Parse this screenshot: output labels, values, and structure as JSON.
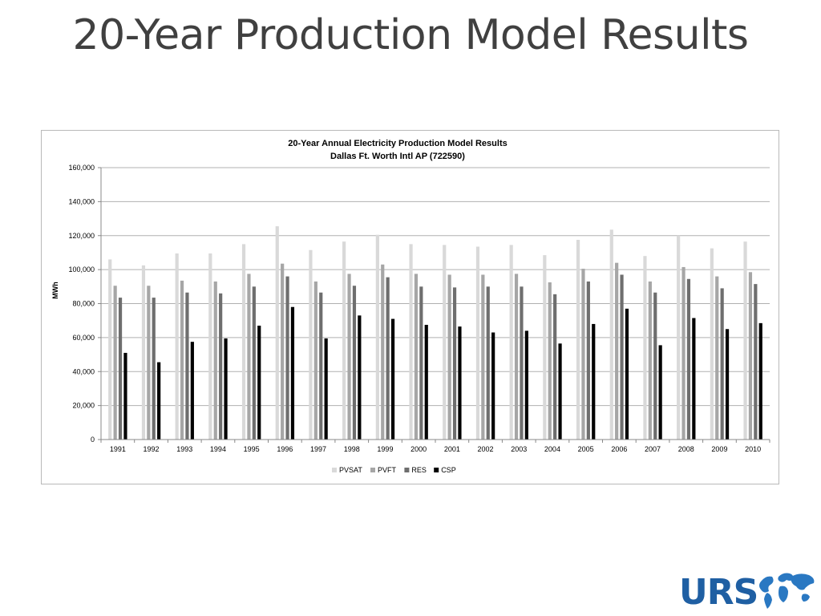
{
  "slide": {
    "title": "20-Year Production Model Results"
  },
  "logo": {
    "text": "URS",
    "color": "#1f5fa3"
  },
  "chart_data": {
    "type": "bar",
    "title": "20-Year Annual Electricity Production Model Results",
    "subtitle": "Dallas Ft. Worth Intl AP (722590)",
    "xlabel": "",
    "ylabel": "MWh",
    "ylim": [
      0,
      160000
    ],
    "yticks": [
      "0",
      "20,000",
      "40,000",
      "60,000",
      "80,000",
      "100,000",
      "120,000",
      "140,000",
      "160,000"
    ],
    "ytick_values": [
      0,
      20000,
      40000,
      60000,
      80000,
      100000,
      120000,
      140000,
      160000
    ],
    "grid": true,
    "legend_position": "bottom",
    "categories": [
      "1991",
      "1992",
      "1993",
      "1994",
      "1995",
      "1996",
      "1997",
      "1998",
      "1999",
      "2000",
      "2001",
      "2002",
      "2003",
      "2004",
      "2005",
      "2006",
      "2007",
      "2008",
      "2009",
      "2010"
    ],
    "series": [
      {
        "name": "PVSAT",
        "color": "#d9d9d9",
        "values": [
          106000,
          102500,
          109500,
          109500,
          115000,
          125500,
          111500,
          116500,
          120500,
          115000,
          114500,
          113500,
          114500,
          108500,
          117500,
          123500,
          108000,
          120000,
          112500,
          116500
        ]
      },
      {
        "name": "PVFT",
        "color": "#a6a6a6",
        "values": [
          90500,
          90500,
          93500,
          93000,
          97500,
          103500,
          93000,
          97500,
          103000,
          97500,
          97000,
          97000,
          97500,
          92500,
          100500,
          104000,
          93000,
          101500,
          96000,
          98500
        ]
      },
      {
        "name": "RES",
        "color": "#6e6e6e",
        "values": [
          83500,
          83500,
          86500,
          86000,
          90000,
          96000,
          86500,
          90500,
          95500,
          90000,
          89500,
          90000,
          90000,
          85500,
          93000,
          97000,
          86500,
          94500,
          89000,
          91500
        ]
      },
      {
        "name": "CSP",
        "color": "#000000",
        "values": [
          51000,
          45500,
          57500,
          59500,
          67000,
          78000,
          59500,
          73000,
          71000,
          67500,
          66500,
          63000,
          64000,
          56500,
          68000,
          77000,
          55500,
          71500,
          65000,
          68500
        ]
      }
    ]
  }
}
